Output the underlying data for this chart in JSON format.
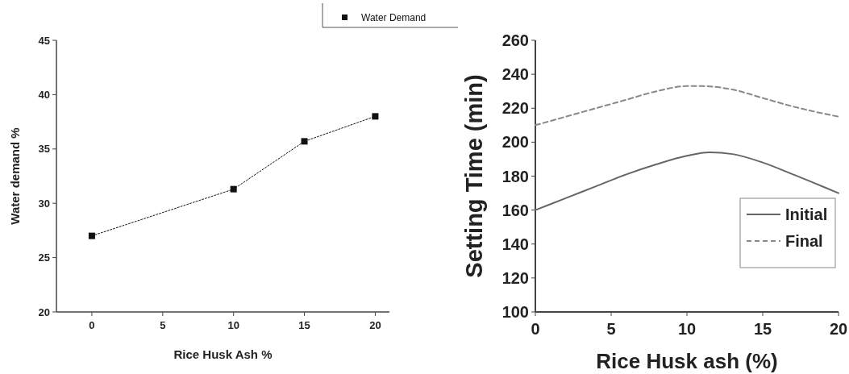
{
  "chart_data": [
    {
      "type": "line",
      "xlabel": "Rice Husk Ash %",
      "ylabel": "Water demand %",
      "x": [
        0,
        10,
        15,
        20
      ],
      "xlim": [
        -2.5,
        21
      ],
      "xticks": [
        0,
        5,
        10,
        15,
        20
      ],
      "ylim": [
        20,
        45
      ],
      "yticks": [
        20,
        25,
        30,
        35,
        40,
        45
      ],
      "marker": "square",
      "line_style": "dotted",
      "legend": "top right",
      "series": [
        {
          "name": "Water Demand",
          "color": "#111111",
          "values": [
            27,
            31.3,
            35.7,
            38
          ]
        }
      ]
    },
    {
      "type": "line",
      "xlabel": "Rice Husk ash (%)",
      "ylabel": "Setting Time (min)",
      "xlim": [
        0,
        20
      ],
      "xticks": [
        0,
        5,
        10,
        15,
        20
      ],
      "ylim": [
        100,
        260
      ],
      "yticks": [
        100,
        120,
        140,
        160,
        180,
        200,
        220,
        240,
        260
      ],
      "legend": "right",
      "series": [
        {
          "name": "Initial",
          "color": "#666666",
          "line_style": "solid",
          "x": [
            0,
            2,
            4,
            6,
            8,
            10,
            11.5,
            13,
            15,
            17,
            20
          ],
          "values": [
            160,
            167,
            174,
            181,
            187,
            192,
            194,
            193,
            188,
            181,
            170
          ]
        },
        {
          "name": "Final",
          "color": "#888888",
          "line_style": "dashed",
          "x": [
            0,
            2,
            4,
            6,
            8,
            10,
            11,
            13,
            15,
            17,
            20
          ],
          "values": [
            210,
            215,
            220,
            225,
            230,
            233,
            233,
            231,
            226,
            221,
            215
          ]
        }
      ]
    }
  ]
}
